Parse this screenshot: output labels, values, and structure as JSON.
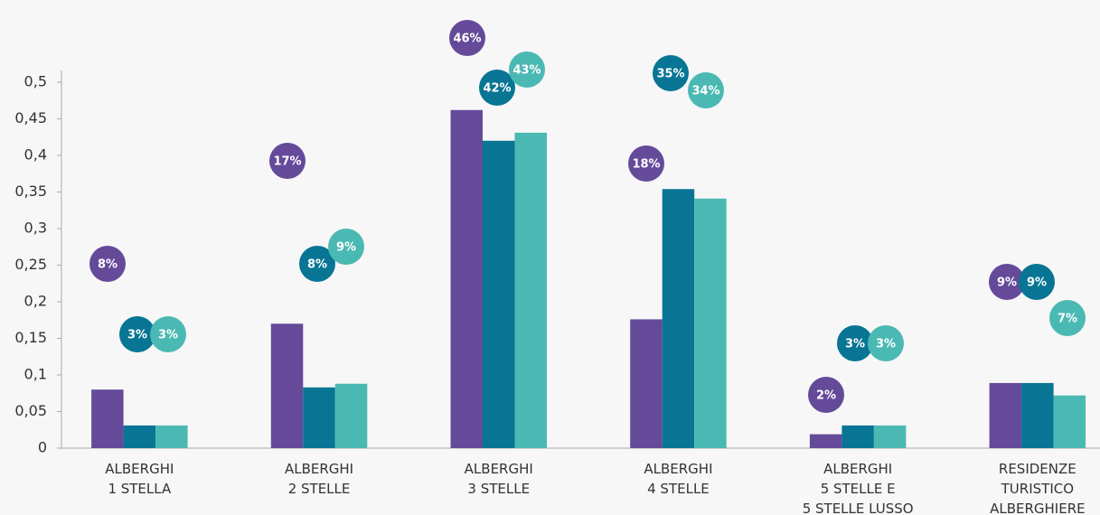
{
  "chart_data": {
    "type": "bar",
    "categories": [
      [
        "ALBERGHI",
        "1 STELLA"
      ],
      [
        "ALBERGHI",
        "2 STELLE"
      ],
      [
        "ALBERGHI",
        "3 STELLE"
      ],
      [
        "ALBERGHI",
        "4 STELLE"
      ],
      [
        "ALBERGHI",
        "5 STELLE E",
        "5 STELLE LUSSO"
      ],
      [
        "RESIDENZE",
        "TURISTICO",
        "ALBERGHIERE"
      ]
    ],
    "series": [
      {
        "color": "#654a9a",
        "values": [
          0.08,
          0.17,
          0.462,
          0.176,
          0.019,
          0.089
        ],
        "value_labels": [
          "8%",
          "17%",
          "46%",
          "18%",
          "2%",
          "9%"
        ]
      },
      {
        "color": "#087594",
        "values": [
          0.031,
          0.083,
          0.42,
          0.354,
          0.031,
          0.089
        ],
        "value_labels": [
          "3%",
          "8%",
          "42%",
          "35%",
          "3%",
          "9%"
        ]
      },
      {
        "color": "#4bb9b3",
        "values": [
          0.031,
          0.088,
          0.431,
          0.341,
          0.031,
          0.072
        ],
        "value_labels": [
          "3%",
          "9%",
          "43%",
          "34%",
          "3%",
          "7%"
        ]
      }
    ],
    "ylim": [
      0,
      0.5
    ],
    "yticks": [
      0,
      {
        "value": 0.05,
        "label": "0,05"
      },
      {
        "value": 0.1,
        "label": "0,1"
      },
      {
        "value": 0.15,
        "label": "0,15"
      },
      {
        "value": 0.2,
        "label": "0,2"
      },
      {
        "value": 0.25,
        "label": "0,25"
      },
      {
        "value": 0.3,
        "label": "0,3"
      },
      {
        "value": 0.35,
        "label": "0,35"
      },
      {
        "value": 0.4,
        "label": "0,4"
      },
      {
        "value": 0.45,
        "label": "0,45"
      },
      {
        "value": 0.5,
        "label": "0,5"
      }
    ],
    "grid": false
  }
}
